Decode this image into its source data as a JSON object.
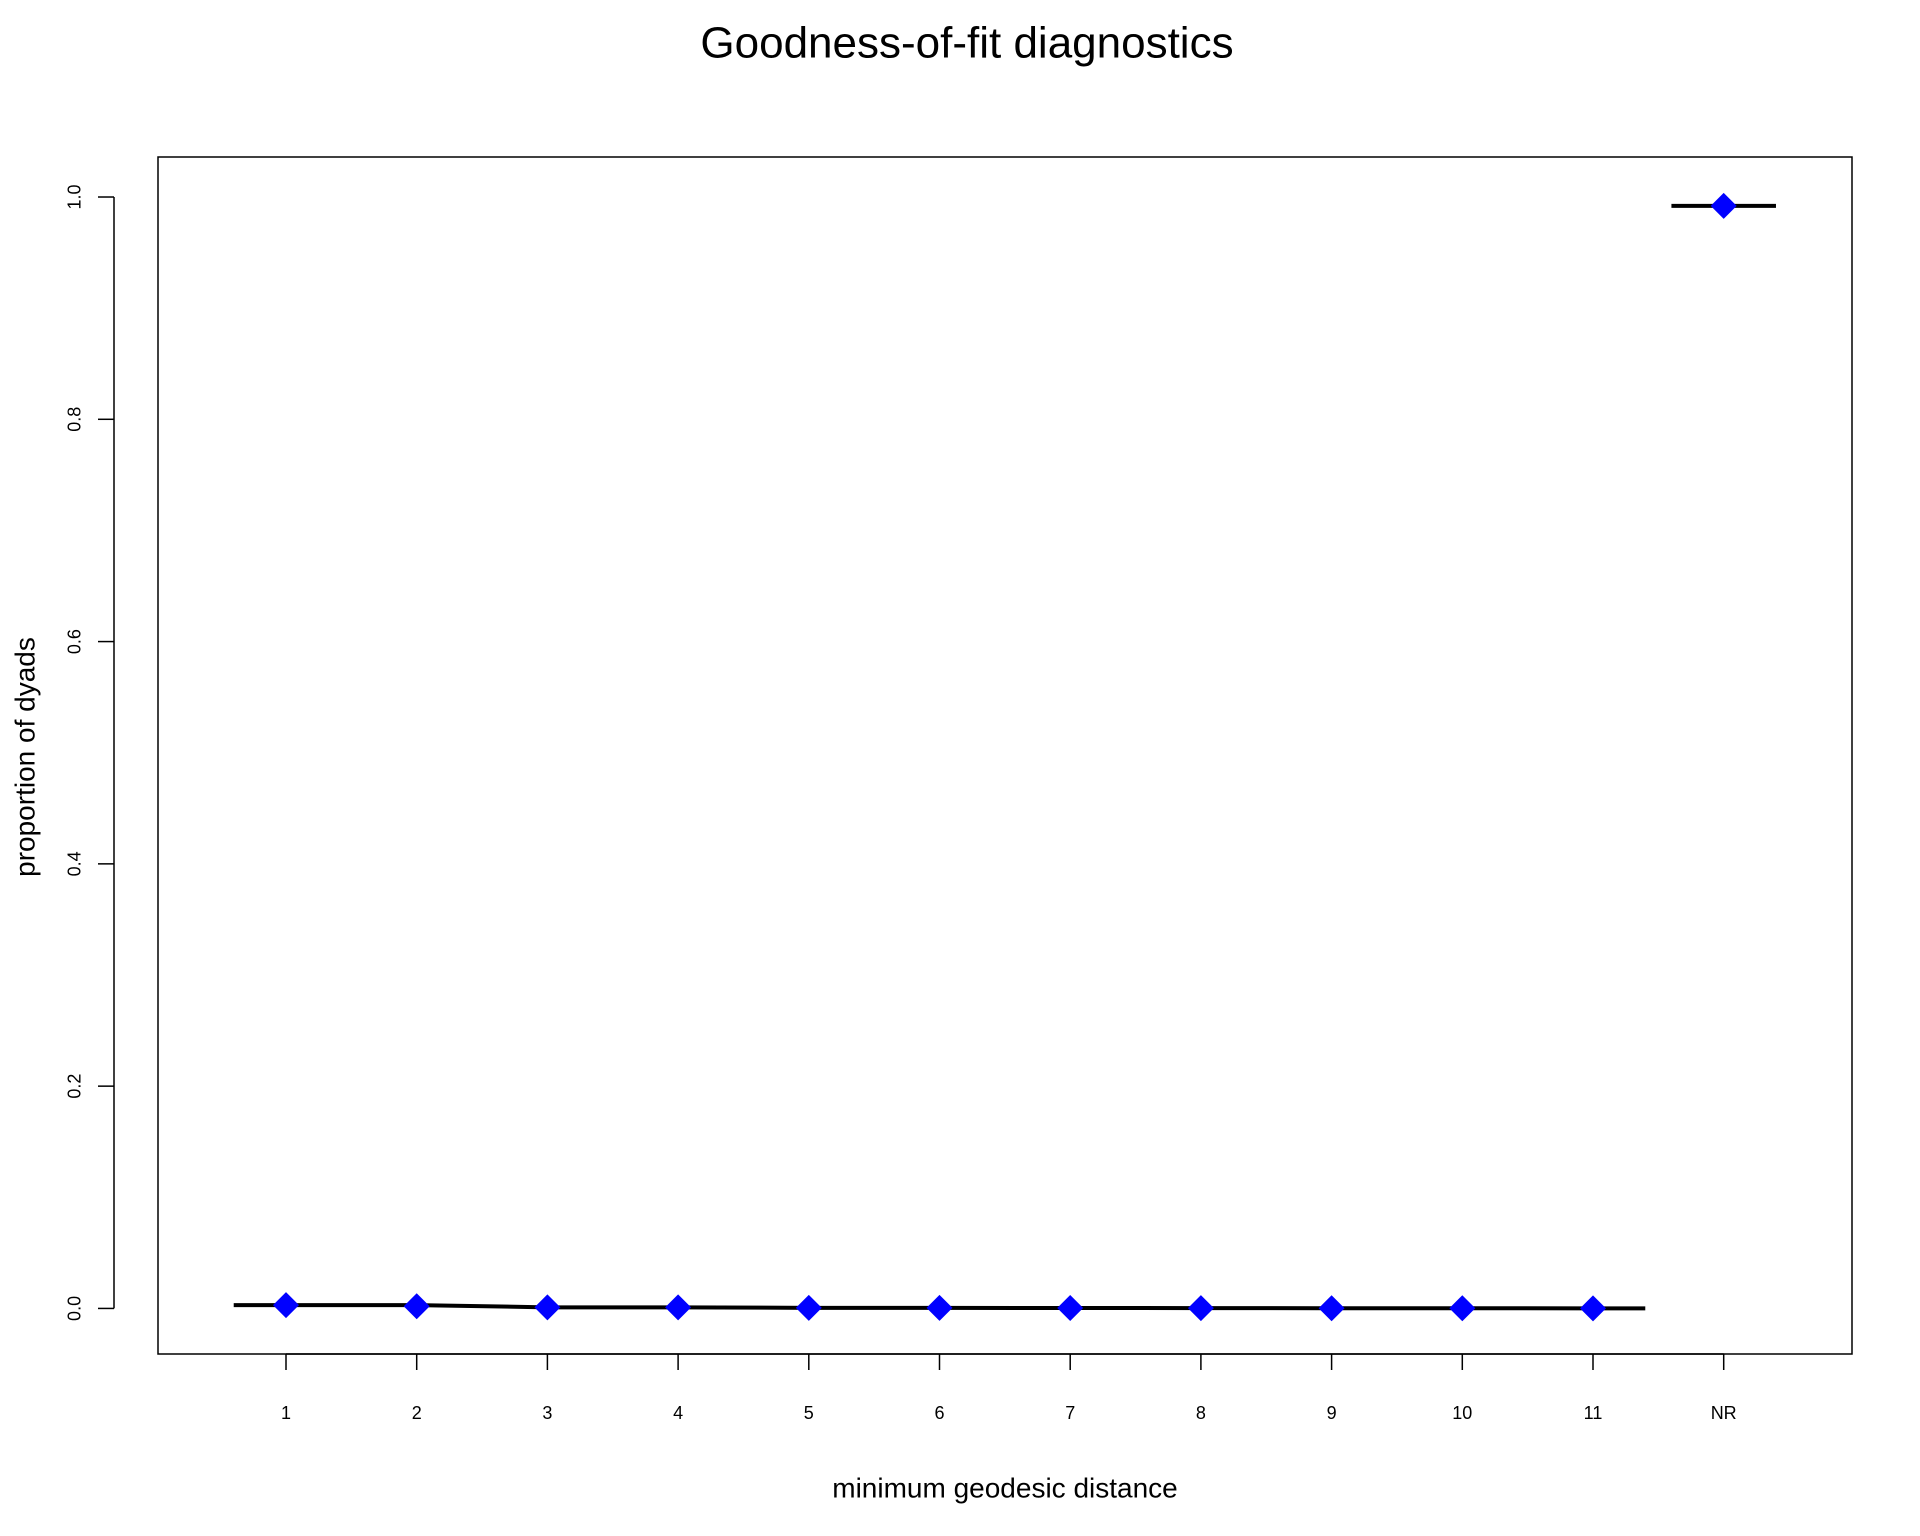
{
  "chart_data": {
    "type": "line",
    "title": "Goodness-of-fit diagnostics",
    "x_label": "minimum geodesic distance",
    "y_label": "proportion of dyads",
    "categories": [
      "1",
      "2",
      "3",
      "4",
      "5",
      "6",
      "7",
      "8",
      "9",
      "10",
      "11",
      "NR"
    ],
    "series": [
      {
        "color": "#000000",
        "values": [
          0.003,
          0.003,
          0.001,
          0.001,
          0.0005,
          0.0005,
          0.0004,
          0.0003,
          0.0002,
          0.0002,
          0.0001,
          0.992
        ]
      },
      {
        "color": "#0000ff",
        "marker": "diamond",
        "values": [
          0.003,
          0.002,
          0.001,
          0.001,
          0.0005,
          0.0005,
          0.0004,
          0.0003,
          0.0002,
          0.0002,
          0.0001,
          0.992
        ]
      }
    ],
    "ylim": [
      -0.041,
      1.036
    ],
    "yticks": [
      {
        "value": 0,
        "label": "0.0"
      },
      0.2,
      0.4,
      0.6,
      0.8,
      {
        "value": 1,
        "label": "1.0"
      }
    ],
    "grid": false
  }
}
